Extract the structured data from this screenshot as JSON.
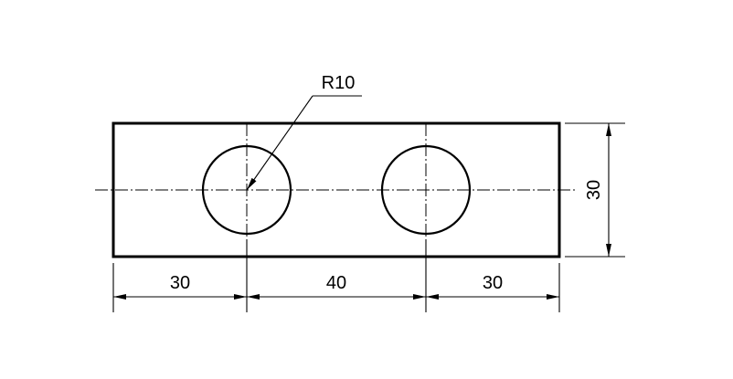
{
  "drawing": {
    "radius_label": "R10",
    "dimensions": {
      "left_offset": "30",
      "hole_spacing": "40",
      "right_offset": "30",
      "height": "30"
    }
  }
}
